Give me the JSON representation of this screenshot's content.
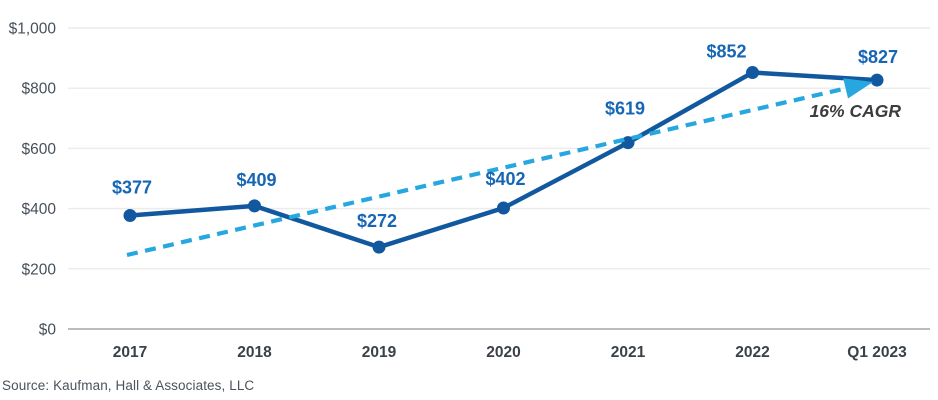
{
  "chart_data": {
    "type": "line",
    "categories": [
      "2017",
      "2018",
      "2019",
      "2020",
      "2021",
      "2022",
      "Q1 2023"
    ],
    "values": [
      377,
      409,
      272,
      402,
      619,
      852,
      827
    ],
    "data_labels": [
      "$377",
      "$409",
      "$272",
      "$402",
      "$619",
      "$852",
      "$827"
    ],
    "ylim": [
      0,
      1000
    ],
    "yticks": [
      0,
      200,
      400,
      600,
      800,
      1000
    ],
    "ytick_labels": [
      "$0",
      "$200",
      "$400",
      "$600",
      "$800",
      "$1,000"
    ],
    "grid": "horizontal",
    "legend": "none",
    "trendline": {
      "style": "dashed-with-arrow",
      "label": "16% CAGR",
      "approx_start_value": 245,
      "approx_end_value": 820
    }
  },
  "colors": {
    "line": "#11589f",
    "marker": "#11589f",
    "data_label": "#1766b4",
    "trend": "#27a7e0",
    "grid": "#ececec",
    "axis_zero": "#a6a6a6",
    "ytick_label": "#47505a",
    "category_label": "#3a4149",
    "cagr_label": "#3d3d3d"
  },
  "source": {
    "text": "Source: Kaufman, Hall & Associates, LLC"
  }
}
